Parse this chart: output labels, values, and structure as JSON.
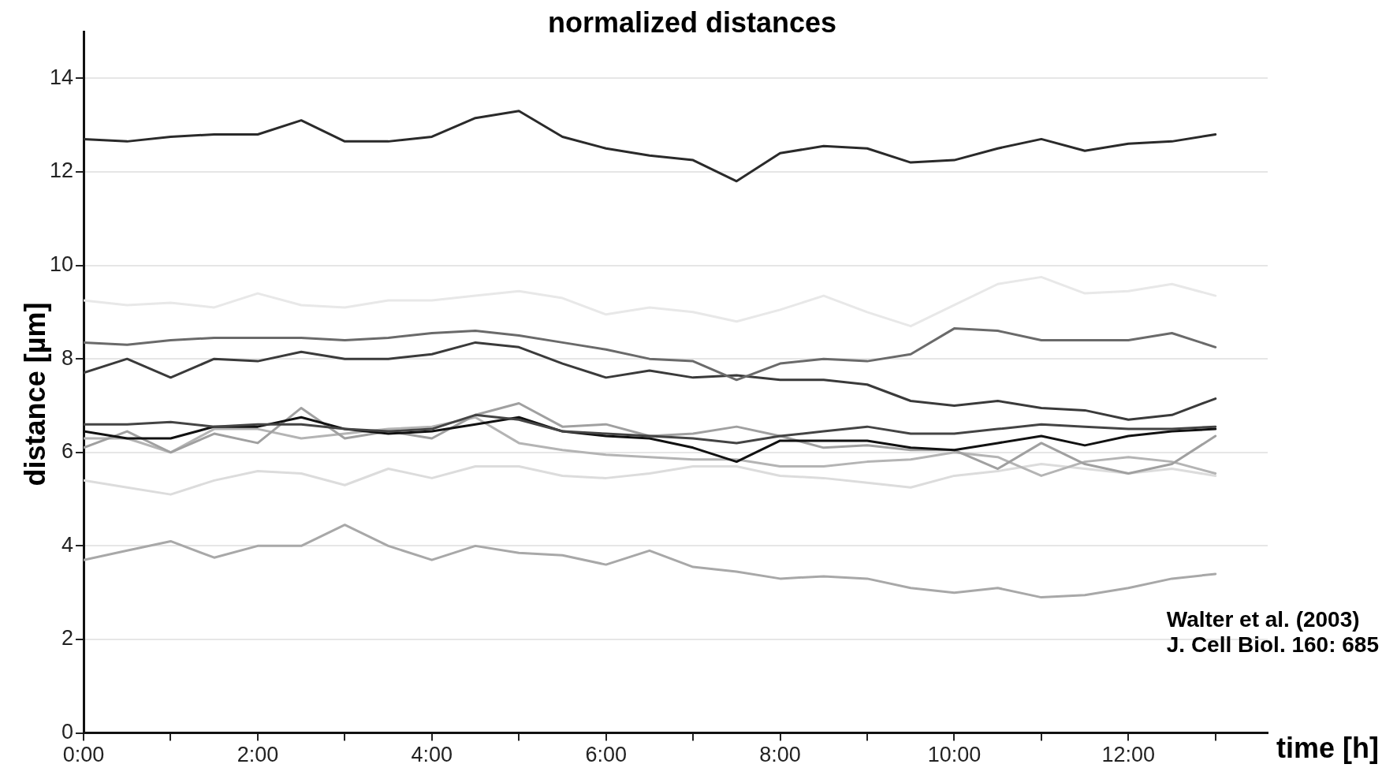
{
  "chart_data": {
    "type": "line",
    "title": "normalized distances",
    "xlabel": "time [h]",
    "ylabel": "distance [µm]",
    "x": [
      0,
      0.5,
      1,
      1.5,
      2,
      2.5,
      3,
      3.5,
      4,
      4.5,
      5,
      5.5,
      6,
      6.5,
      7,
      7.5,
      8,
      8.5,
      9,
      9.5,
      10,
      10.5,
      11,
      11.5,
      12,
      12.5,
      13
    ],
    "xlim": [
      0,
      13.6
    ],
    "xticks": [
      {
        "value": 0,
        "label": "0:00"
      },
      {
        "value": 1,
        "label": null
      },
      {
        "value": 2,
        "label": "2:00"
      },
      {
        "value": 3,
        "label": null
      },
      {
        "value": 4,
        "label": "4:00"
      },
      {
        "value": 5,
        "label": null
      },
      {
        "value": 6,
        "label": "6:00"
      },
      {
        "value": 7,
        "label": null
      },
      {
        "value": 8,
        "label": "8:00"
      },
      {
        "value": 9,
        "label": null
      },
      {
        "value": 10,
        "label": "10:00"
      },
      {
        "value": 11,
        "label": null
      },
      {
        "value": 12,
        "label": "12:00"
      },
      {
        "value": 13,
        "label": null
      }
    ],
    "ylim": [
      0,
      15
    ],
    "yticks": [
      0,
      2,
      4,
      6,
      8,
      10,
      12,
      14
    ],
    "grid": "y",
    "legend": false,
    "marker": "none",
    "line_style": "solid",
    "series": [
      {
        "color": "#2a2a2a",
        "values": [
          12.7,
          12.65,
          12.75,
          12.8,
          12.8,
          13.1,
          12.65,
          12.65,
          12.75,
          13.15,
          13.3,
          12.75,
          12.5,
          12.35,
          12.25,
          11.8,
          12.4,
          12.55,
          12.5,
          12.2,
          12.25,
          12.5,
          12.7,
          12.45,
          12.6,
          12.65,
          12.8
        ]
      },
      {
        "color": "#e8e8e8",
        "values": [
          9.25,
          9.15,
          9.2,
          9.1,
          9.4,
          9.15,
          9.1,
          9.25,
          9.25,
          9.35,
          9.45,
          9.3,
          8.95,
          9.1,
          9.0,
          8.8,
          9.05,
          9.35,
          9.0,
          8.7,
          9.15,
          9.6,
          9.75,
          9.4,
          9.45,
          9.6,
          9.35
        ]
      },
      {
        "color": "#6a6a6a",
        "values": [
          8.35,
          8.3,
          8.4,
          8.45,
          8.45,
          8.45,
          8.4,
          8.45,
          8.55,
          8.6,
          8.5,
          8.35,
          8.2,
          8.0,
          7.95,
          7.55,
          7.9,
          8.0,
          7.95,
          8.1,
          8.65,
          8.6,
          8.4,
          8.4,
          8.4,
          8.55,
          8.25
        ]
      },
      {
        "color": "#3a3a3a",
        "values": [
          7.7,
          8.0,
          7.6,
          8.0,
          7.95,
          8.15,
          8.0,
          8.0,
          8.1,
          8.35,
          8.25,
          7.9,
          7.6,
          7.75,
          7.6,
          7.65,
          7.55,
          7.55,
          7.45,
          7.1,
          7.0,
          7.1,
          6.95,
          6.9,
          6.7,
          6.8,
          7.15
        ]
      },
      {
        "color": "#444444",
        "values": [
          6.6,
          6.6,
          6.65,
          6.55,
          6.6,
          6.6,
          6.5,
          6.45,
          6.5,
          6.8,
          6.7,
          6.45,
          6.4,
          6.35,
          6.3,
          6.2,
          6.35,
          6.45,
          6.55,
          6.4,
          6.4,
          6.5,
          6.6,
          6.55,
          6.5,
          6.5,
          6.55
        ]
      },
      {
        "color": "#111111",
        "values": [
          6.45,
          6.3,
          6.3,
          6.55,
          6.55,
          6.75,
          6.5,
          6.4,
          6.45,
          6.6,
          6.75,
          6.45,
          6.35,
          6.3,
          6.1,
          5.8,
          6.25,
          6.25,
          6.25,
          6.1,
          6.05,
          6.2,
          6.35,
          6.15,
          6.35,
          6.45,
          6.5
        ]
      },
      {
        "color": "#a0a0a0",
        "values": [
          6.1,
          6.45,
          6.0,
          6.4,
          6.2,
          6.95,
          6.3,
          6.45,
          6.3,
          6.8,
          7.05,
          6.55,
          6.6,
          6.35,
          6.4,
          6.55,
          6.35,
          6.1,
          6.15,
          6.05,
          6.05,
          5.65,
          6.2,
          5.75,
          5.55,
          5.75,
          6.35
        ]
      },
      {
        "color": "#b4b4b4",
        "values": [
          6.3,
          6.3,
          6.0,
          6.5,
          6.5,
          6.3,
          6.4,
          6.5,
          6.55,
          6.75,
          6.2,
          6.05,
          5.95,
          5.9,
          5.85,
          5.85,
          5.7,
          5.7,
          5.8,
          5.85,
          6.0,
          5.9,
          5.5,
          5.8,
          5.9,
          5.8,
          5.55
        ]
      },
      {
        "color": "#dcdcdc",
        "values": [
          5.4,
          5.25,
          5.1,
          5.4,
          5.6,
          5.55,
          5.3,
          5.65,
          5.45,
          5.7,
          5.7,
          5.5,
          5.45,
          5.55,
          5.7,
          5.7,
          5.5,
          5.45,
          5.35,
          5.25,
          5.5,
          5.6,
          5.75,
          5.65,
          5.55,
          5.65,
          5.5
        ]
      },
      {
        "color": "#a8a8a8",
        "values": [
          3.7,
          3.9,
          4.1,
          3.75,
          4.0,
          4.0,
          4.45,
          4.0,
          3.7,
          4.0,
          3.85,
          3.8,
          3.6,
          3.9,
          3.55,
          3.45,
          3.3,
          3.35,
          3.3,
          3.1,
          3.0,
          3.1,
          2.9,
          2.95,
          3.1,
          3.3,
          3.4
        ]
      }
    ],
    "annotations": [
      "Walter et al. (2003)",
      "J. Cell Biol. 160: 685"
    ]
  }
}
